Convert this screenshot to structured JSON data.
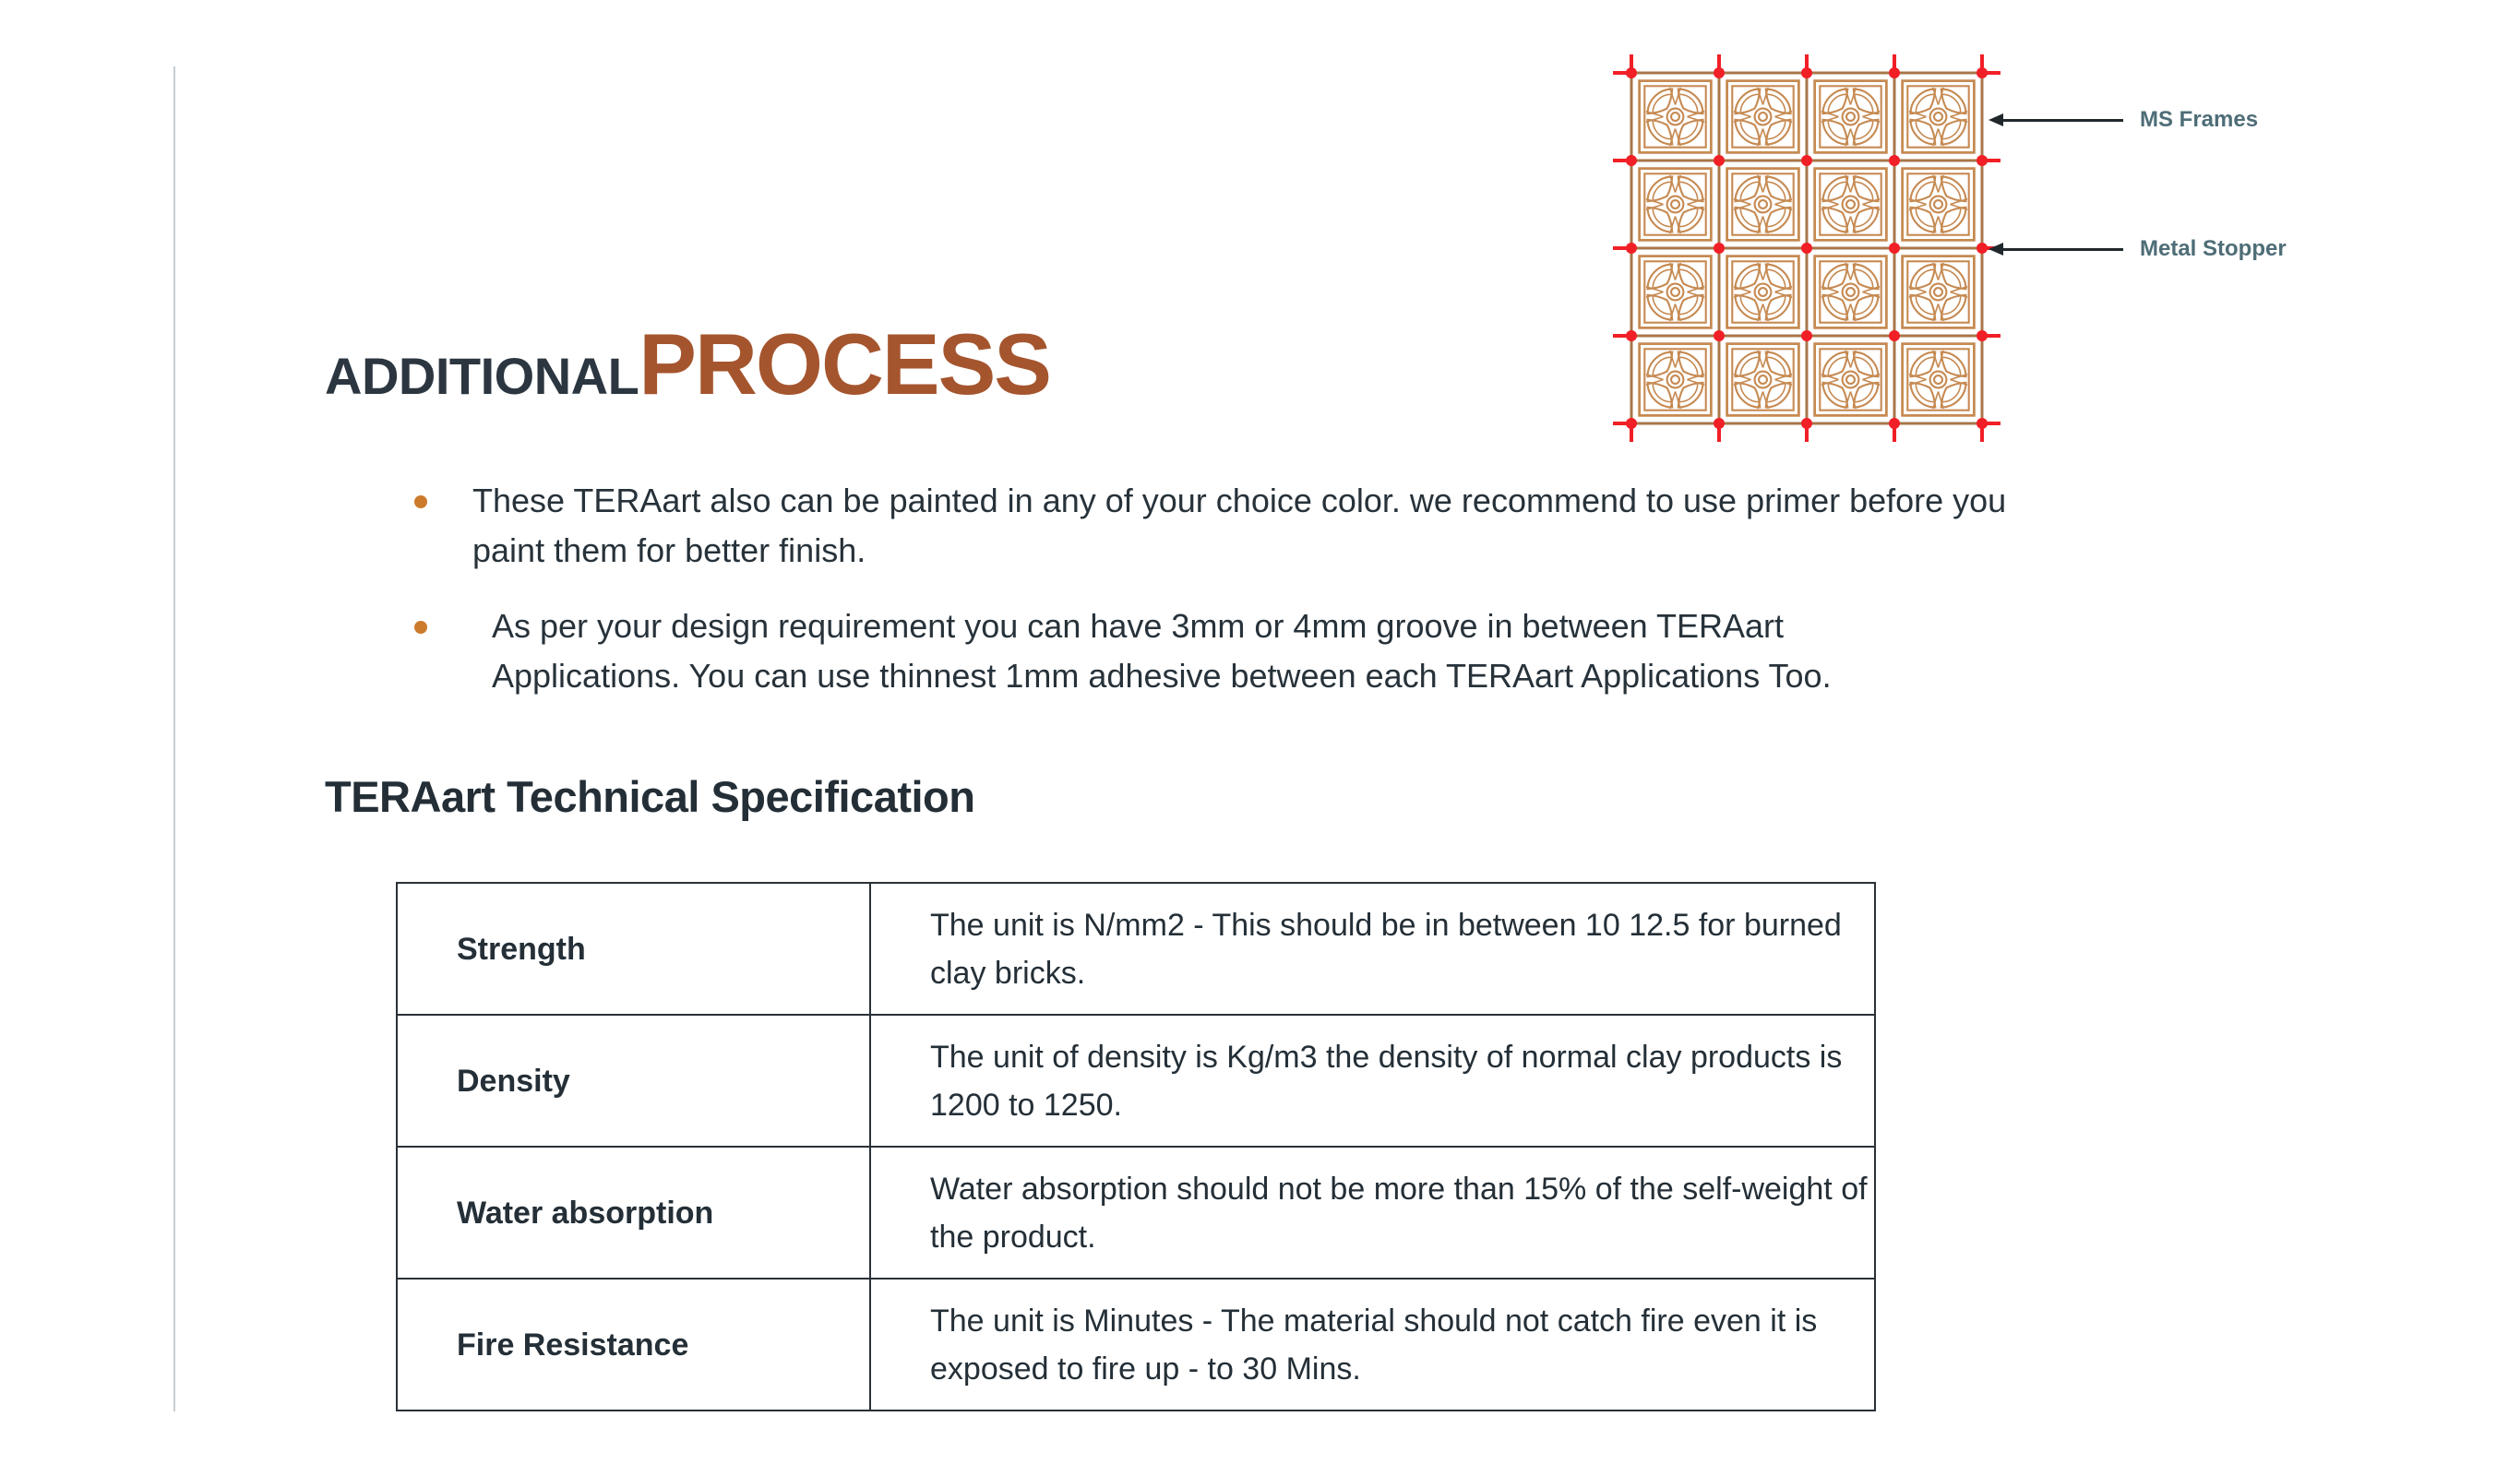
{
  "title": {
    "prefix": "ADDITIONAL",
    "emphasis": "PROCESS"
  },
  "bullets": [
    "These TERAart also can be painted in any of your choice color. we recommend to use primer before you paint them for better finish.",
    "As per your design requirement you can have 3mm or 4mm groove in between TERAart Applications. You can use thinnest 1mm adhesive between each TERAart Applications Too."
  ],
  "spec": {
    "heading": "TERAart Technical Specification",
    "rows": [
      {
        "property": "Strength",
        "description": "The unit is N/mm2 - This should be in between 10 12.5 for burned clay bricks."
      },
      {
        "property": "Density",
        "description": "The unit of density is Kg/m3 the density of normal clay products is 1200 to 1250."
      },
      {
        "property": "Water absorption",
        "description": "Water absorption should not be more than 15% of the self-weight of the product."
      },
      {
        "property": "Fire Resistance",
        "description": "The unit is Minutes - The material should not catch fire even it is exposed to fire up - to 30 Mins."
      }
    ]
  },
  "diagram": {
    "grid": {
      "rows": 4,
      "cols": 4
    },
    "annotations": [
      {
        "label": "MS Frames"
      },
      {
        "label": "Metal Stopper"
      }
    ]
  },
  "colors": {
    "accent_brown": "#a5552e",
    "bullet_orange": "#cc7a2b",
    "text_dark": "#27323a",
    "jali_tan": "#c68a52",
    "frame_brown": "#a8764a",
    "marker_red": "#f11f26",
    "annotation_teal": "#4e6d77",
    "arrow_dark": "#20282c"
  }
}
